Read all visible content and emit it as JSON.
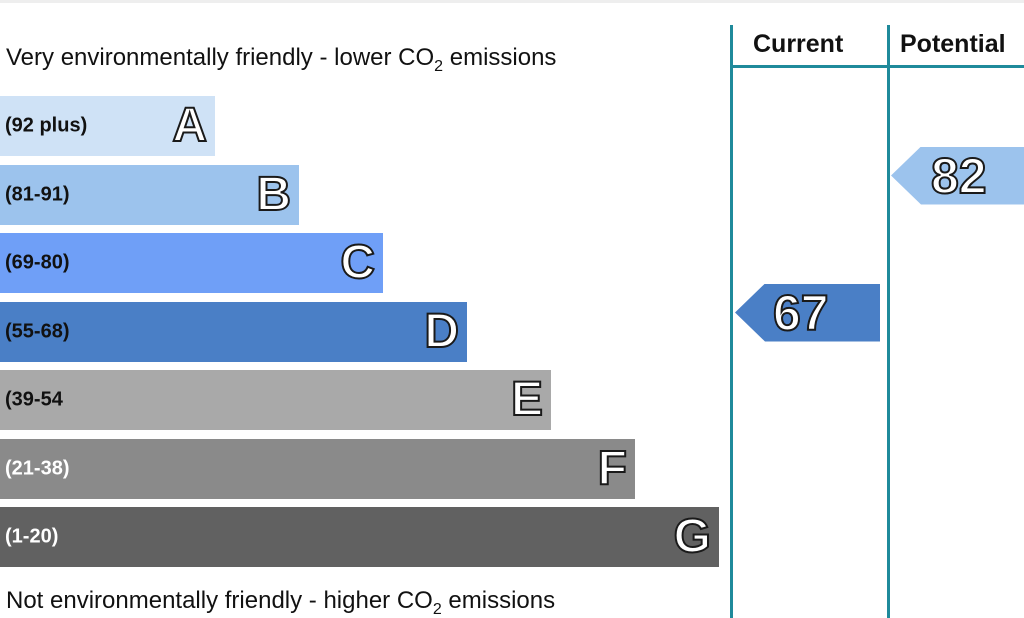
{
  "chart_data": {
    "type": "bar",
    "title": "",
    "top_caption": {
      "prefix": "Very environmentally friendly - lower CO",
      "subscript": "2",
      "suffix": " emissions"
    },
    "bottom_caption": {
      "prefix": "Not environmentally friendly - higher CO",
      "subscript": "2",
      "suffix": " emissions"
    },
    "bands": [
      {
        "letter": "A",
        "range": "(92 plus)",
        "color": "#cfe2f6"
      },
      {
        "letter": "B",
        "range": "(81-91)",
        "color": "#9cc3ed"
      },
      {
        "letter": "C",
        "range": "(69-80)",
        "color": "#6f9ff7"
      },
      {
        "letter": "D",
        "range": "(55-68)",
        "color": "#4a7fc6"
      },
      {
        "letter": "E",
        "range": "(39-54",
        "color": "#a9a9a9"
      },
      {
        "letter": "F",
        "range": "(21-38)",
        "color": "#8a8a8a"
      },
      {
        "letter": "G",
        "range": "(1-20)",
        "color": "#616161"
      }
    ],
    "columns": [
      {
        "name": "Current",
        "value": 67,
        "color": "#4a7fc6"
      },
      {
        "name": "Potential",
        "value": 82,
        "color": "#9cc3ed"
      }
    ],
    "line_color": "#1f8a9b"
  }
}
